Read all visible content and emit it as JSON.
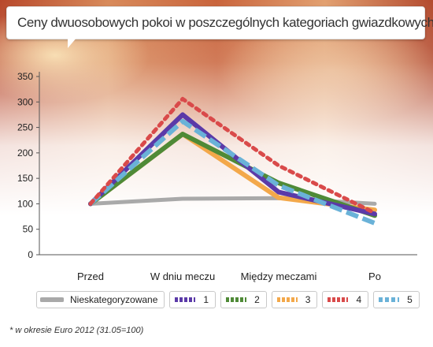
{
  "title": "Ceny dwuosobowych pokoi w poszczególnych kategoriach gwiazdkowych*",
  "footnote": "* w okresie Euro 2012 (31.05=100)",
  "chart_data": {
    "type": "line",
    "categories": [
      "Przed",
      "W dniu meczu",
      "Między meczami",
      "Po"
    ],
    "ylim": [
      0,
      350
    ],
    "yticks": [
      0,
      50,
      100,
      150,
      200,
      250,
      300,
      350
    ],
    "grid": false,
    "legend_position": "bottom",
    "series": [
      {
        "name": "Nieskategoryzowane",
        "color": "#a9a9a9",
        "style": "solid",
        "values": [
          100,
          110,
          111,
          100
        ]
      },
      {
        "name": "1",
        "color": "#5b3aa8",
        "style": "solid",
        "values": [
          100,
          275,
          123,
          80
        ]
      },
      {
        "name": "2",
        "color": "#4f8a37",
        "style": "solid",
        "values": [
          100,
          237,
          141,
          77
        ]
      },
      {
        "name": "3",
        "color": "#f3a84a",
        "style": "solid",
        "values": [
          100,
          237,
          112,
          88
        ]
      },
      {
        "name": "4",
        "color": "#d94a4a",
        "style": "dotted",
        "values": [
          100,
          306,
          175,
          82
        ]
      },
      {
        "name": "5",
        "color": "#6ab2d8",
        "style": "dashed",
        "values": [
          100,
          262,
          136,
          62
        ]
      }
    ]
  }
}
